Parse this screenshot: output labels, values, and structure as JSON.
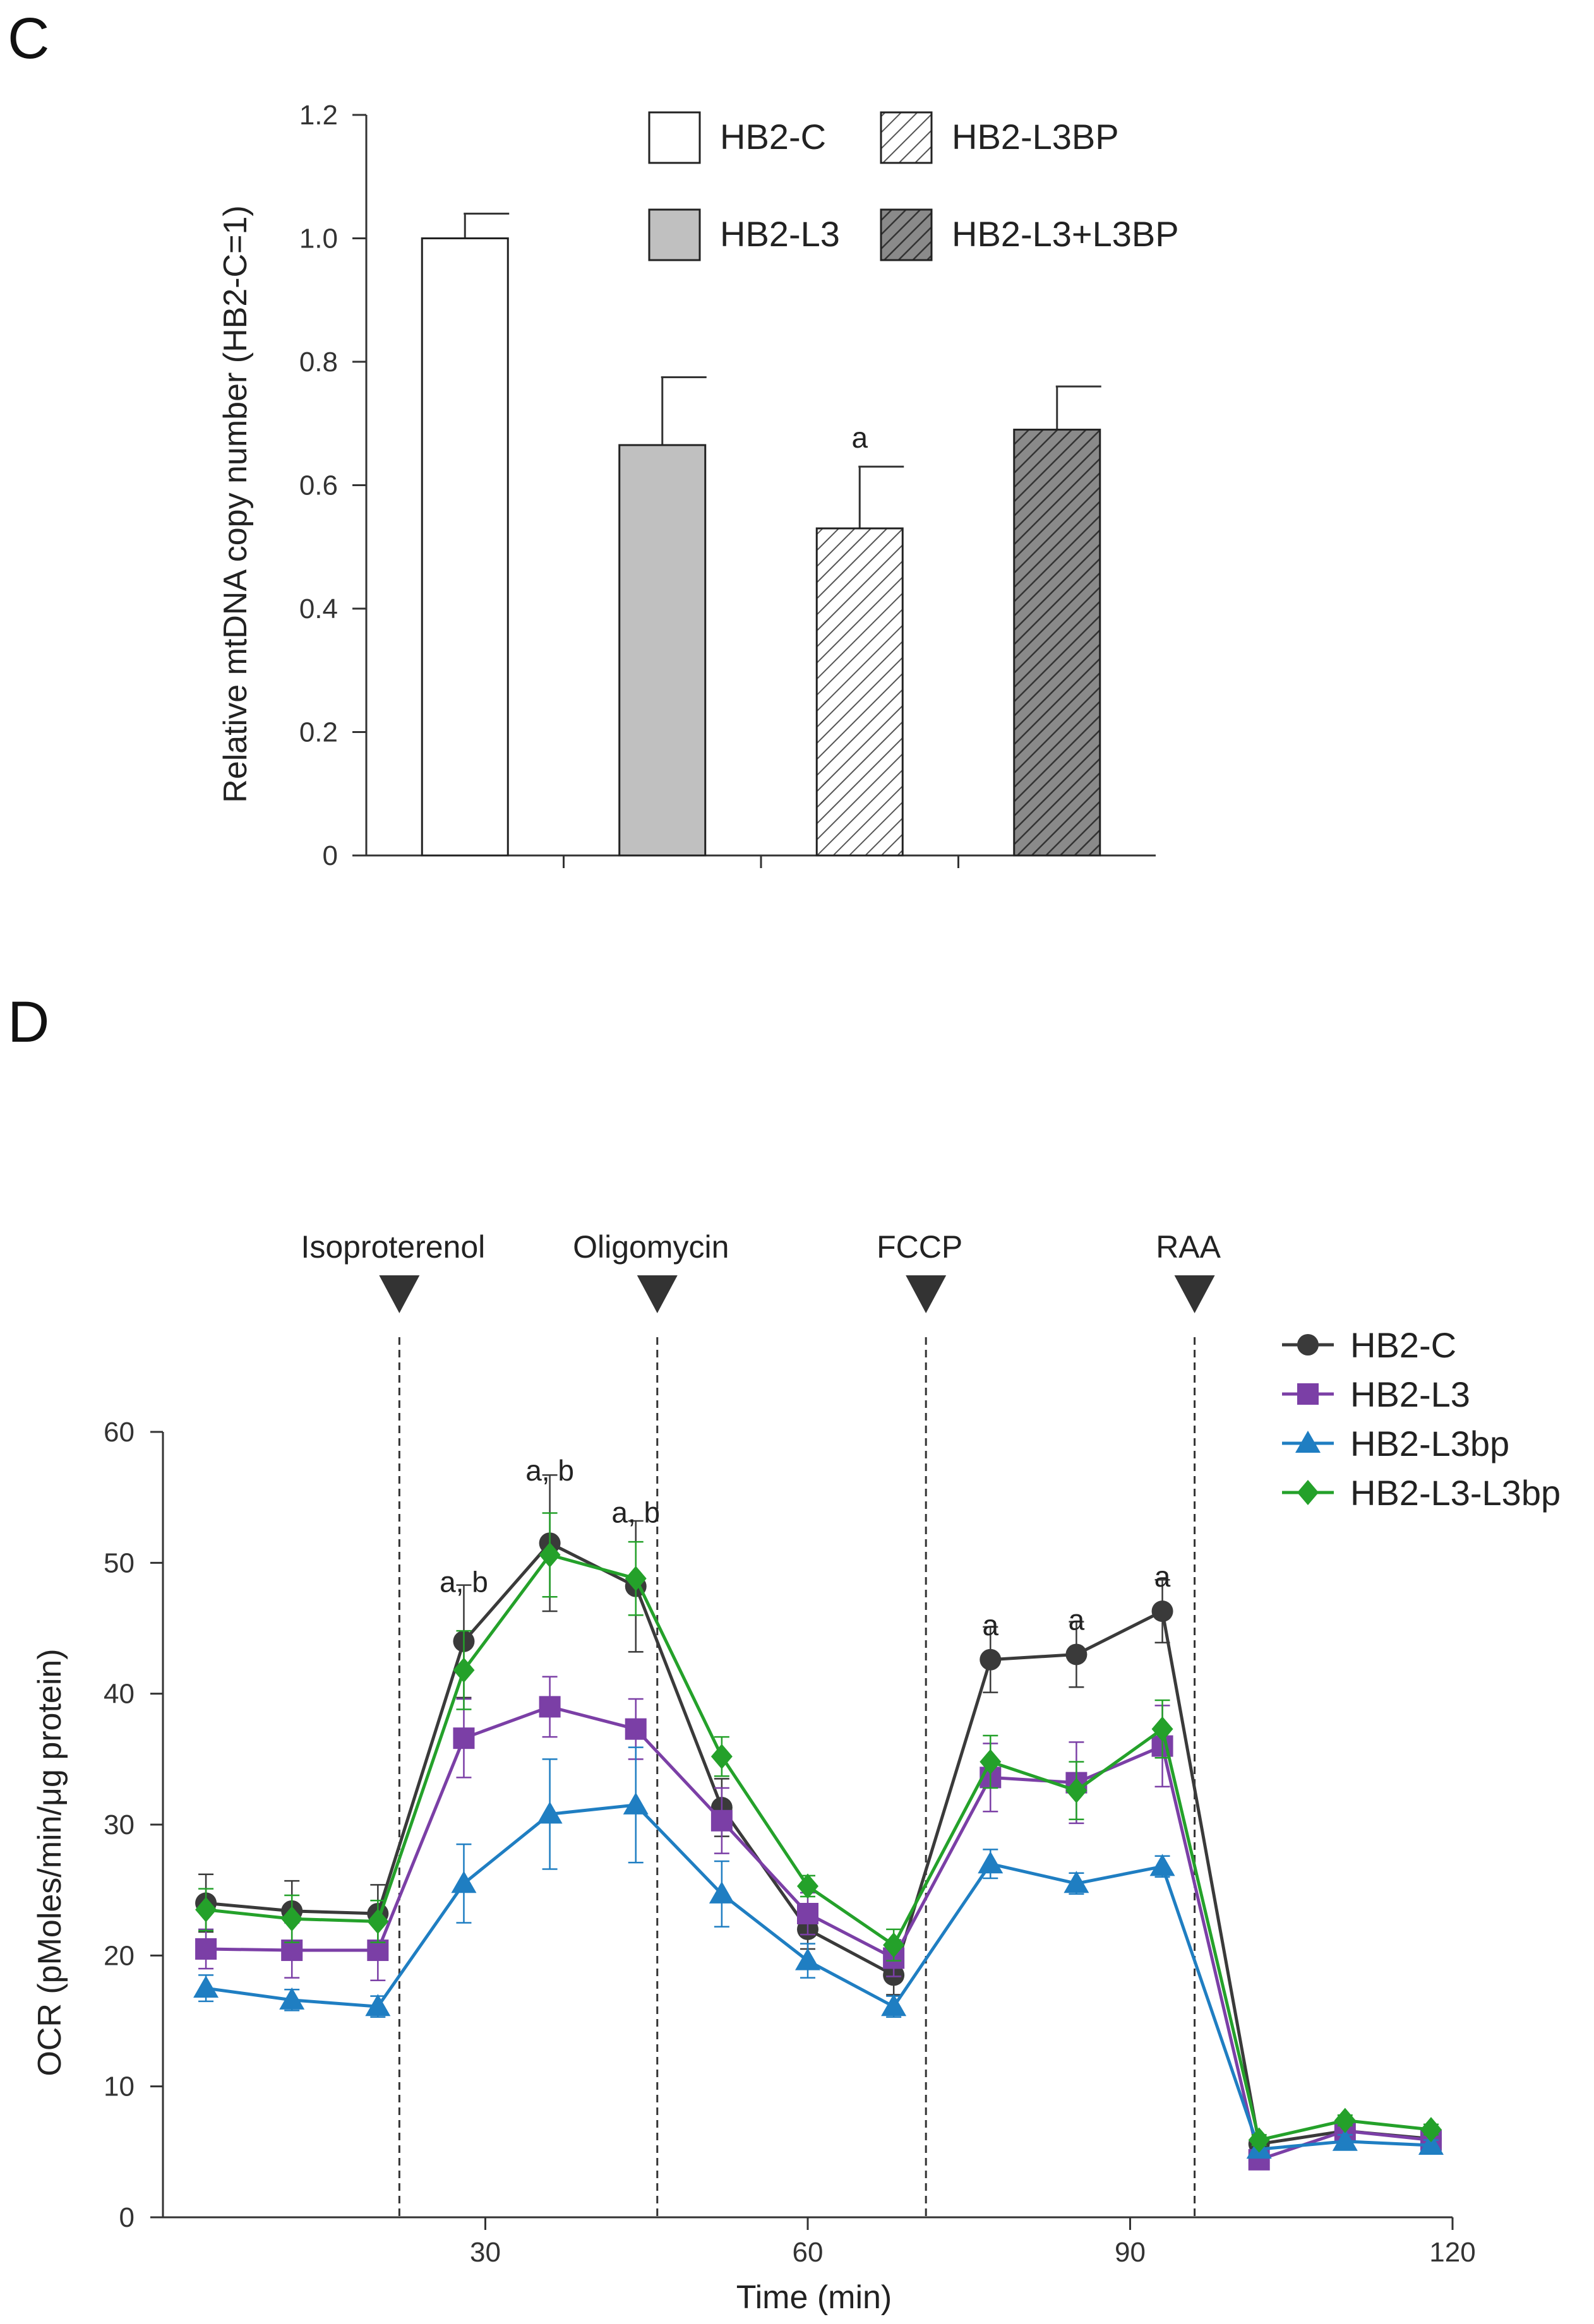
{
  "panels": {
    "c_label": "C",
    "d_label": "D"
  },
  "colors": {
    "hb2c": "#3a3a3a",
    "hb2l3": "#7b3fa6",
    "hb2l3bp": "#1f7ec2",
    "hb2l3l3bp": "#24a12a",
    "bar_gray": "#c0c0c0",
    "hatch_dark_bg": "#8a8a8a"
  },
  "chart_data": [
    {
      "type": "bar",
      "panel": "C",
      "categories": [
        "HB2-C",
        "HB2-L3",
        "HB2-L3BP",
        "HB2-L3+L3BP"
      ],
      "values": [
        1.0,
        0.665,
        0.53,
        0.69
      ],
      "errors": [
        0.04,
        0.11,
        0.1,
        0.07
      ],
      "fills": [
        "white",
        "gray",
        "hatch-light",
        "hatch-dark"
      ],
      "annotations": [
        {
          "category": "HB2-L3BP",
          "text": "a"
        }
      ],
      "ylabel": "Relative  mtDNA copy number  (HB2-C=1)",
      "ylim": [
        0,
        1.2
      ],
      "yticks": [
        0,
        0.2,
        0.4,
        0.6,
        0.8,
        1.0,
        1.2
      ],
      "ytick_labels": [
        "0",
        "0.2",
        "0.4",
        "0.6",
        "0.8",
        "1.0",
        "1.2"
      ],
      "legend": [
        "HB2-C",
        "HB2-L3BP",
        "HB2-L3",
        "HB2-L3+L3BP"
      ],
      "legend_position": "top-right"
    },
    {
      "type": "line",
      "panel": "D",
      "x": [
        4,
        12,
        20,
        28,
        36,
        44,
        52,
        60,
        68,
        77,
        85,
        93,
        102,
        110,
        118
      ],
      "series": [
        {
          "name": "HB2-C",
          "marker": "circle",
          "color": "#3a3a3a",
          "values": [
            24.0,
            23.4,
            23.2,
            44.0,
            51.5,
            48.2,
            31.3,
            22.0,
            18.5,
            42.6,
            43.0,
            46.3,
            5.6,
            6.6,
            6.0
          ],
          "errors": [
            2.2,
            2.3,
            2.2,
            4.3,
            5.2,
            5.0,
            2.2,
            1.5,
            1.5,
            2.5,
            2.5,
            2.4,
            0.5,
            0.5,
            0.5
          ]
        },
        {
          "name": "HB2-L3",
          "marker": "square",
          "color": "#7b3fa6",
          "values": [
            20.5,
            20.4,
            20.4,
            36.6,
            39.0,
            37.3,
            30.3,
            23.2,
            19.8,
            33.6,
            33.2,
            36.0,
            4.4,
            6.6,
            5.9
          ],
          "errors": [
            1.5,
            2.1,
            2.3,
            3.0,
            2.3,
            2.3,
            2.5,
            1.6,
            1.4,
            2.6,
            3.1,
            3.1,
            0.5,
            0.5,
            0.5
          ]
        },
        {
          "name": "HB2-L3bp",
          "marker": "triangle",
          "color": "#1f7ec2",
          "values": [
            17.5,
            16.6,
            16.1,
            25.5,
            30.8,
            31.5,
            24.7,
            19.6,
            16.1,
            27.0,
            25.5,
            26.8,
            5.2,
            5.8,
            5.5
          ],
          "errors": [
            1.0,
            0.8,
            0.8,
            3.0,
            4.2,
            4.4,
            2.5,
            1.3,
            0.8,
            1.1,
            0.8,
            0.8,
            0.5,
            0.5,
            0.4
          ]
        },
        {
          "name": "HB2-L3-L3bp",
          "marker": "diamond",
          "color": "#24a12a",
          "values": [
            23.5,
            22.8,
            22.6,
            41.8,
            50.6,
            48.8,
            35.2,
            25.3,
            20.8,
            34.8,
            32.6,
            37.3,
            5.9,
            7.4,
            6.7
          ],
          "errors": [
            1.6,
            1.8,
            1.6,
            3.0,
            3.2,
            2.8,
            1.5,
            0.8,
            1.2,
            2.0,
            2.2,
            2.2,
            0.4,
            0.4,
            0.4
          ]
        }
      ],
      "annotations": [
        {
          "x": 28,
          "y": 48.5,
          "text": "a, b"
        },
        {
          "x": 36,
          "y": 57.0,
          "text": "a, b"
        },
        {
          "x": 44,
          "y": 53.8,
          "text": "a, b"
        },
        {
          "x": 77,
          "y": 45.2,
          "text": "a"
        },
        {
          "x": 85,
          "y": 45.6,
          "text": "a"
        },
        {
          "x": 93,
          "y": 48.9,
          "text": "a"
        }
      ],
      "treatments": [
        {
          "x": 22,
          "label": "Isoproterenol"
        },
        {
          "x": 46,
          "label": "Oligomycin"
        },
        {
          "x": 71,
          "label": "FCCP"
        },
        {
          "x": 96,
          "label": "RAA"
        }
      ],
      "xlabel": "Time (min)",
      "ylabel": "OCR (pMoles/min/μg  protein)",
      "xlim": [
        0,
        120
      ],
      "ylim": [
        0,
        60
      ],
      "xticks": [
        30,
        60,
        90,
        120
      ],
      "xtick_labels": [
        "30",
        "60",
        "90",
        "120"
      ],
      "yticks": [
        0,
        10,
        20,
        30,
        40,
        50,
        60
      ],
      "ytick_labels": [
        "0",
        "10",
        "20",
        "30",
        "40",
        "50",
        "60"
      ],
      "legend": [
        "HB2-C",
        "HB2-L3",
        "HB2-L3bp",
        "HB2-L3-L3bp"
      ],
      "legend_position": "top-right"
    }
  ]
}
